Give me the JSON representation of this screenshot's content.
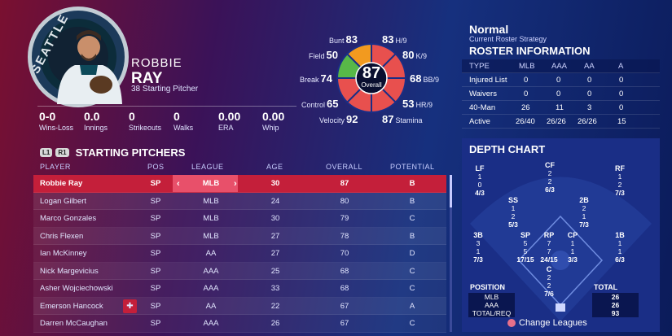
{
  "team_logo_text": "SEATTLE",
  "player": {
    "first": "ROBBIE",
    "last": "RAY",
    "role": "38 Starting Pitcher"
  },
  "stats": [
    {
      "value": "0-0",
      "label": "Wins-Loss"
    },
    {
      "value": "0.0",
      "label": "Innings"
    },
    {
      "value": "0",
      "label": "Strikeouts"
    },
    {
      "value": "0",
      "label": "Walks"
    },
    {
      "value": "0.00",
      "label": "ERA"
    },
    {
      "value": "0.00",
      "label": "Whip"
    }
  ],
  "ratings": {
    "overall": "87",
    "overall_label": "Overall",
    "left": [
      {
        "label": "Bunt",
        "value": "83"
      },
      {
        "label": "Field",
        "value": "50"
      },
      {
        "label": "Break",
        "value": "74"
      },
      {
        "label": "Control",
        "value": "65"
      },
      {
        "label": "Velocity",
        "value": "92"
      }
    ],
    "right": [
      {
        "value": "83",
        "label": "H/9"
      },
      {
        "value": "80",
        "label": "K/9"
      },
      {
        "value": "68",
        "label": "BB/9"
      },
      {
        "value": "53",
        "label": "HR/9"
      },
      {
        "value": "87",
        "label": "Stamina"
      }
    ]
  },
  "section_pills": [
    "L1",
    "R1"
  ],
  "section_title": "STARTING PITCHERS",
  "columns": [
    "PLAYER",
    "POS",
    "LEAGUE",
    "AGE",
    "OVERALL",
    "POTENTIAL"
  ],
  "rows": [
    [
      "Robbie Ray",
      "SP",
      "MLB",
      "30",
      "87",
      "B"
    ],
    [
      "Logan Gilbert",
      "SP",
      "MLB",
      "24",
      "80",
      "B"
    ],
    [
      "Marco Gonzales",
      "SP",
      "MLB",
      "30",
      "79",
      "C"
    ],
    [
      "Chris Flexen",
      "SP",
      "MLB",
      "27",
      "78",
      "B"
    ],
    [
      "Ian McKinney",
      "SP",
      "AA",
      "27",
      "70",
      "D"
    ],
    [
      "Nick Margevicius",
      "SP",
      "AAA",
      "25",
      "68",
      "C"
    ],
    [
      "Asher Wojciechowski",
      "SP",
      "AAA",
      "33",
      "68",
      "C"
    ],
    [
      "Emerson Hancock",
      "SP",
      "AA",
      "22",
      "67",
      "A"
    ],
    [
      "Darren McCaughan",
      "SP",
      "AAA",
      "26",
      "67",
      "C"
    ]
  ],
  "strategy": {
    "title": "Normal",
    "subtitle": "Current Roster Strategy"
  },
  "roster": {
    "title": "ROSTER INFORMATION",
    "headers": [
      "TYPE",
      "MLB",
      "AAA",
      "AA",
      "A"
    ],
    "rows": [
      [
        "Injured List",
        "0",
        "0",
        "0",
        "0"
      ],
      [
        "Waivers",
        "0",
        "0",
        "0",
        "0"
      ],
      [
        "40-Man",
        "26",
        "11",
        "3",
        "0"
      ],
      [
        "Active",
        "26/40",
        "26/26",
        "26/26",
        "15"
      ]
    ]
  },
  "depth": {
    "title": "DEPTH CHART",
    "positions": [
      {
        "pos": "LF",
        "vals": [
          "1",
          "0"
        ],
        "tot": "4/3"
      },
      {
        "pos": "CF",
        "vals": [
          "2",
          "2"
        ],
        "tot": "6/3"
      },
      {
        "pos": "RF",
        "vals": [
          "1",
          "2"
        ],
        "tot": "7/3"
      },
      {
        "pos": "SS",
        "vals": [
          "1",
          "2"
        ],
        "tot": "5/3"
      },
      {
        "pos": "2B",
        "vals": [
          "2",
          "1"
        ],
        "tot": "7/3"
      },
      {
        "pos": "3B",
        "vals": [
          "3",
          "1"
        ],
        "tot": "7/3"
      },
      {
        "pos": "SP",
        "vals": [
          "5",
          "5"
        ],
        "tot": "17/15"
      },
      {
        "pos": "RP",
        "vals": [
          "7",
          "7"
        ],
        "tot": "24/15"
      },
      {
        "pos": "CP",
        "vals": [
          "1",
          "1"
        ],
        "tot": "3/3"
      },
      {
        "pos": "1B",
        "vals": [
          "1",
          "1"
        ],
        "tot": "6/3"
      },
      {
        "pos": "C",
        "vals": [
          "2",
          "2"
        ],
        "tot": "7/6"
      }
    ],
    "position_label": "POSITION",
    "total_label": "TOTAL",
    "totals": [
      {
        "label": "MLB",
        "value": "26"
      },
      {
        "label": "AAA",
        "value": "26"
      },
      {
        "label": "TOTAL/REQ",
        "value": "93"
      }
    ]
  },
  "change_leagues": "Change Leagues",
  "colors": {
    "selected_row": "#c41f3a",
    "league_highlight": "#e8506a",
    "rating_red": "#e8504e",
    "rating_orange": "#f29a1f",
    "rating_green": "#58b848"
  }
}
